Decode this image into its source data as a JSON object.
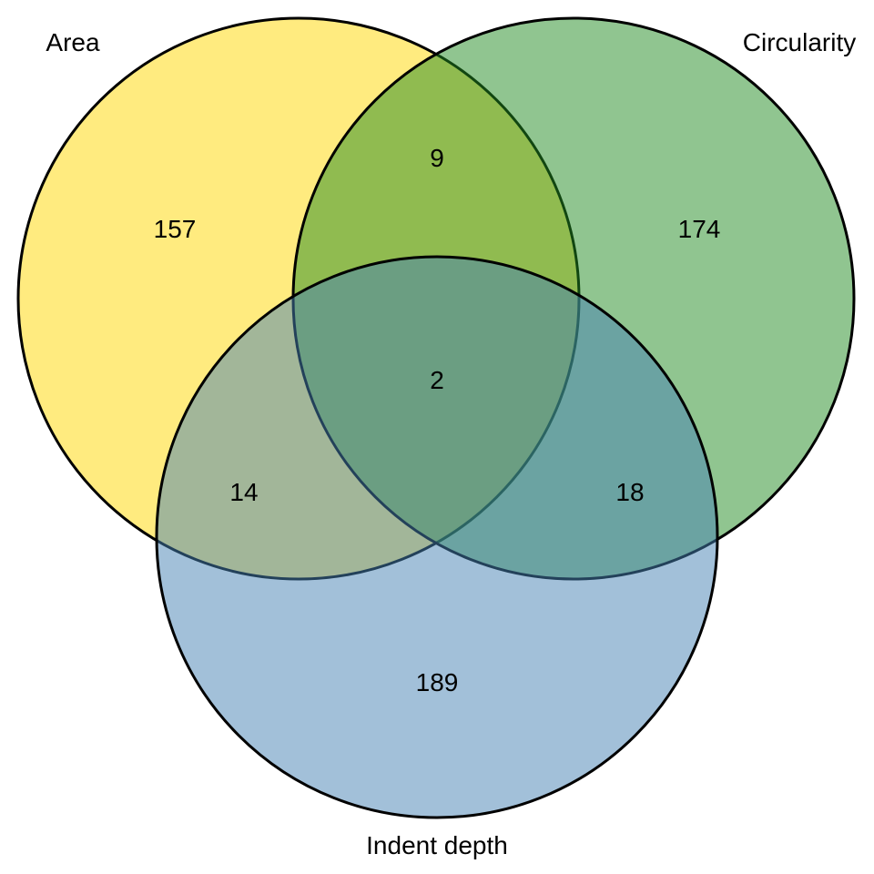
{
  "sets": [
    {
      "id": "area",
      "label": "Area",
      "color": "#FFD700"
    },
    {
      "id": "circularity",
      "label": "Circularity",
      "color": "#228B22"
    },
    {
      "id": "indent",
      "label": "Indent depth",
      "color": "#4682B4"
    }
  ],
  "regions": {
    "area_only": "157",
    "circularity_only": "174",
    "indent_only": "189",
    "area_circularity": "9",
    "area_indent": "14",
    "circularity_indent": "18",
    "all_three": "2"
  }
}
